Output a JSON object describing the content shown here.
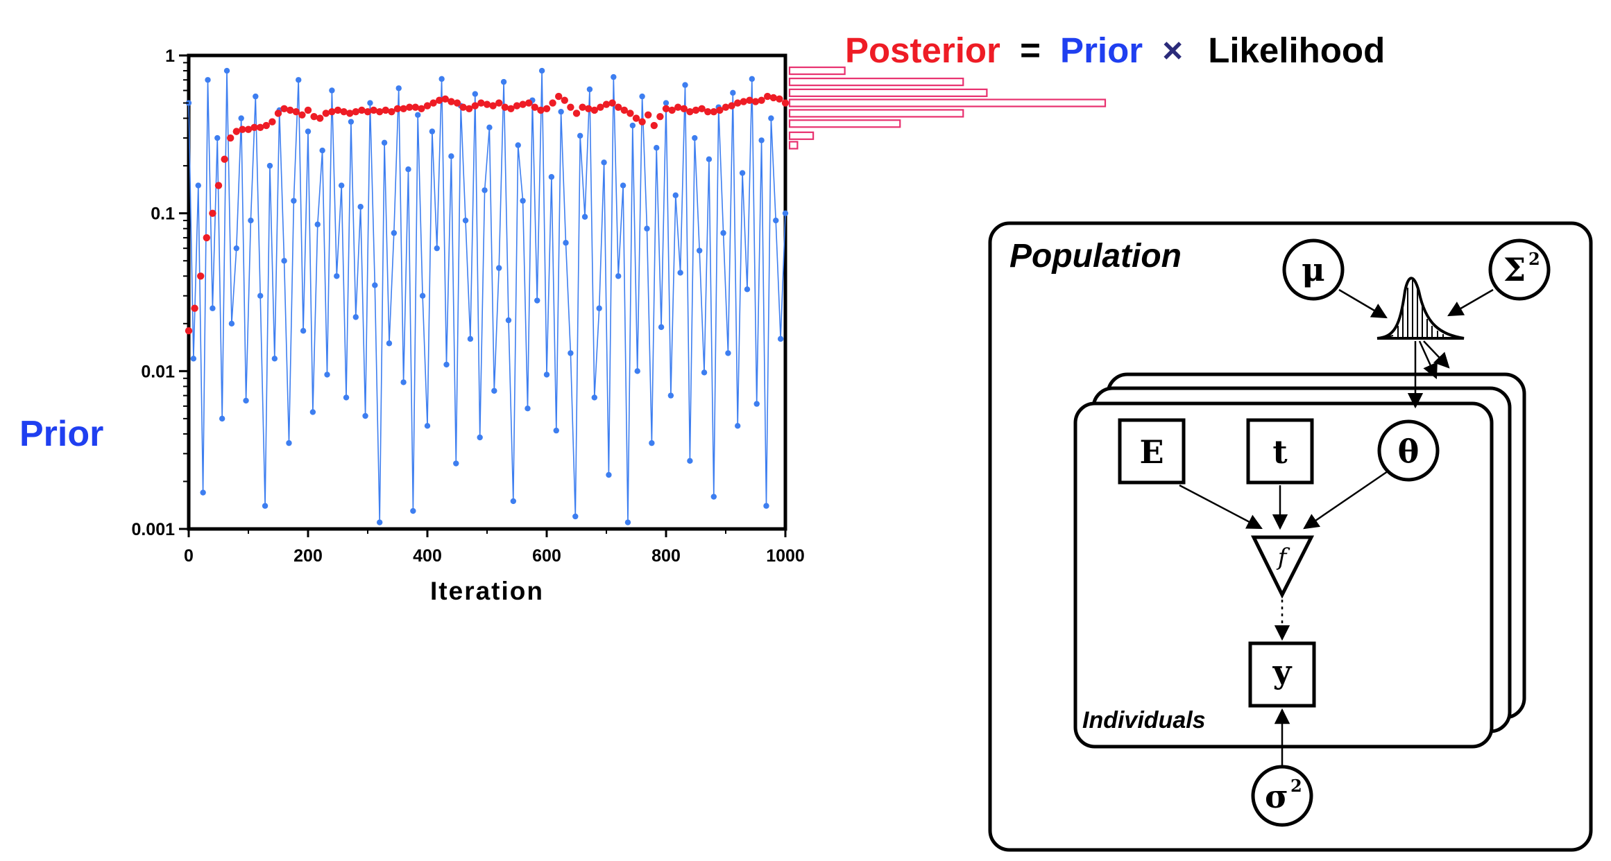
{
  "chart_data": {
    "type": "scatter",
    "xlabel": "Iteration",
    "ylabel": "Prior",
    "xlim": [
      0,
      1000
    ],
    "ylim": [
      0.001,
      1
    ],
    "yscale": "log",
    "x_ticks": [
      "0",
      "200",
      "400",
      "600",
      "800",
      "1000"
    ],
    "y_ticks": [
      "0.001",
      "0.01",
      "0.1",
      "1"
    ],
    "series": [
      {
        "role": "prior samples",
        "color": "#3d7ef0",
        "style": "points joined by thin lines",
        "x": [
          0,
          8,
          16,
          24,
          32,
          40,
          48,
          56,
          64,
          72,
          80,
          88,
          96,
          104,
          112,
          120,
          128,
          136,
          144,
          152,
          160,
          168,
          176,
          184,
          192,
          200,
          208,
          216,
          224,
          232,
          240,
          248,
          256,
          264,
          272,
          280,
          288,
          296,
          304,
          312,
          320,
          328,
          336,
          344,
          352,
          360,
          368,
          376,
          384,
          392,
          400,
          408,
          416,
          424,
          432,
          440,
          448,
          456,
          464,
          472,
          480,
          488,
          496,
          504,
          512,
          520,
          528,
          536,
          544,
          552,
          560,
          568,
          576,
          584,
          592,
          600,
          608,
          616,
          624,
          632,
          640,
          648,
          656,
          664,
          672,
          680,
          688,
          696,
          704,
          712,
          720,
          728,
          736,
          744,
          752,
          760,
          768,
          776,
          784,
          792,
          800,
          808,
          816,
          824,
          832,
          840,
          848,
          856,
          864,
          872,
          880,
          888,
          896,
          904,
          912,
          920,
          928,
          936,
          944,
          952,
          960,
          968,
          976,
          984,
          992,
          1000
        ],
        "y": [
          0.5,
          0.012,
          0.15,
          0.0017,
          0.7,
          0.025,
          0.3,
          0.005,
          0.8,
          0.02,
          0.06,
          0.4,
          0.0065,
          0.09,
          0.55,
          0.03,
          0.0014,
          0.2,
          0.012,
          0.45,
          0.05,
          0.0035,
          0.12,
          0.7,
          0.018,
          0.33,
          0.0055,
          0.085,
          0.25,
          0.0095,
          0.6,
          0.04,
          0.15,
          0.0068,
          0.38,
          0.022,
          0.11,
          0.0052,
          0.5,
          0.035,
          0.0011,
          0.28,
          0.015,
          0.075,
          0.62,
          0.0085,
          0.19,
          0.0013,
          0.42,
          0.03,
          0.0045,
          0.33,
          0.06,
          0.71,
          0.011,
          0.23,
          0.0026,
          0.48,
          0.09,
          0.016,
          0.57,
          0.0038,
          0.14,
          0.35,
          0.0075,
          0.045,
          0.68,
          0.021,
          0.0015,
          0.27,
          0.12,
          0.0058,
          0.52,
          0.028,
          0.8,
          0.0095,
          0.17,
          0.0042,
          0.44,
          0.065,
          0.013,
          0.0012,
          0.31,
          0.095,
          0.61,
          0.0068,
          0.025,
          0.21,
          0.0022,
          0.73,
          0.04,
          0.15,
          0.0011,
          0.36,
          0.01,
          0.55,
          0.08,
          0.0035,
          0.26,
          0.019,
          0.5,
          0.007,
          0.13,
          0.042,
          0.65,
          0.0027,
          0.3,
          0.058,
          0.0098,
          0.22,
          0.0016,
          0.47,
          0.075,
          0.013,
          0.58,
          0.0045,
          0.18,
          0.033,
          0.71,
          0.0062,
          0.29,
          0.0014,
          0.4,
          0.09,
          0.016,
          0.1
        ]
      },
      {
        "role": "posterior samples",
        "color": "#ee1c25",
        "style": "points",
        "x": [
          0,
          10,
          20,
          30,
          40,
          50,
          60,
          70,
          80,
          90,
          100,
          110,
          120,
          130,
          140,
          150,
          160,
          170,
          180,
          190,
          200,
          210,
          220,
          230,
          240,
          250,
          260,
          270,
          280,
          290,
          300,
          310,
          320,
          330,
          340,
          350,
          360,
          370,
          380,
          390,
          400,
          410,
          420,
          430,
          440,
          450,
          460,
          470,
          480,
          490,
          500,
          510,
          520,
          530,
          540,
          550,
          560,
          570,
          580,
          590,
          600,
          610,
          620,
          630,
          640,
          650,
          660,
          670,
          680,
          690,
          700,
          710,
          720,
          730,
          740,
          750,
          760,
          770,
          780,
          790,
          800,
          810,
          820,
          830,
          840,
          850,
          860,
          870,
          880,
          890,
          900,
          910,
          920,
          930,
          940,
          950,
          960,
          970,
          980,
          990,
          1000
        ],
        "y": [
          0.018,
          0.025,
          0.04,
          0.07,
          0.1,
          0.15,
          0.22,
          0.3,
          0.33,
          0.34,
          0.34,
          0.35,
          0.35,
          0.36,
          0.38,
          0.43,
          0.46,
          0.45,
          0.44,
          0.42,
          0.45,
          0.41,
          0.4,
          0.43,
          0.44,
          0.45,
          0.44,
          0.43,
          0.44,
          0.45,
          0.44,
          0.45,
          0.44,
          0.45,
          0.44,
          0.46,
          0.46,
          0.47,
          0.47,
          0.46,
          0.48,
          0.5,
          0.52,
          0.53,
          0.51,
          0.5,
          0.47,
          0.46,
          0.48,
          0.5,
          0.49,
          0.48,
          0.5,
          0.47,
          0.46,
          0.48,
          0.49,
          0.5,
          0.47,
          0.45,
          0.46,
          0.5,
          0.55,
          0.52,
          0.47,
          0.43,
          0.47,
          0.46,
          0.45,
          0.47,
          0.49,
          0.5,
          0.47,
          0.45,
          0.43,
          0.4,
          0.38,
          0.42,
          0.36,
          0.41,
          0.46,
          0.45,
          0.47,
          0.46,
          0.44,
          0.45,
          0.46,
          0.44,
          0.44,
          0.45,
          0.47,
          0.48,
          0.5,
          0.51,
          0.52,
          0.51,
          0.52,
          0.55,
          0.54,
          0.53,
          0.5
        ]
      }
    ],
    "histogram": {
      "color": "#e8306e",
      "orientation": "horizontal",
      "bins_y": [
        0.8,
        0.68,
        0.58,
        0.5,
        0.43,
        0.37,
        0.31,
        0.27
      ],
      "counts": [
        7,
        22,
        25,
        40,
        22,
        14,
        3,
        1
      ]
    }
  },
  "equation": {
    "posterior": "Posterior",
    "equals": "=",
    "prior": "Prior",
    "times": "×",
    "likelihood": "Likelihood",
    "posterior_color": "#ee1c25",
    "prior_color": "#1f3ff0",
    "times_color": "#2b2b7a"
  },
  "side_label": "Prior",
  "diagram": {
    "population_label": "Population",
    "individuals_label": "Individuals",
    "nodes": {
      "mu": "μ",
      "sigma_cap": "Σ",
      "sigma_cap_sup": "2",
      "E": "E",
      "t": "t",
      "theta": "θ",
      "f": "f",
      "y": "y",
      "sigma": "σ",
      "sigma_sup": "2"
    }
  }
}
